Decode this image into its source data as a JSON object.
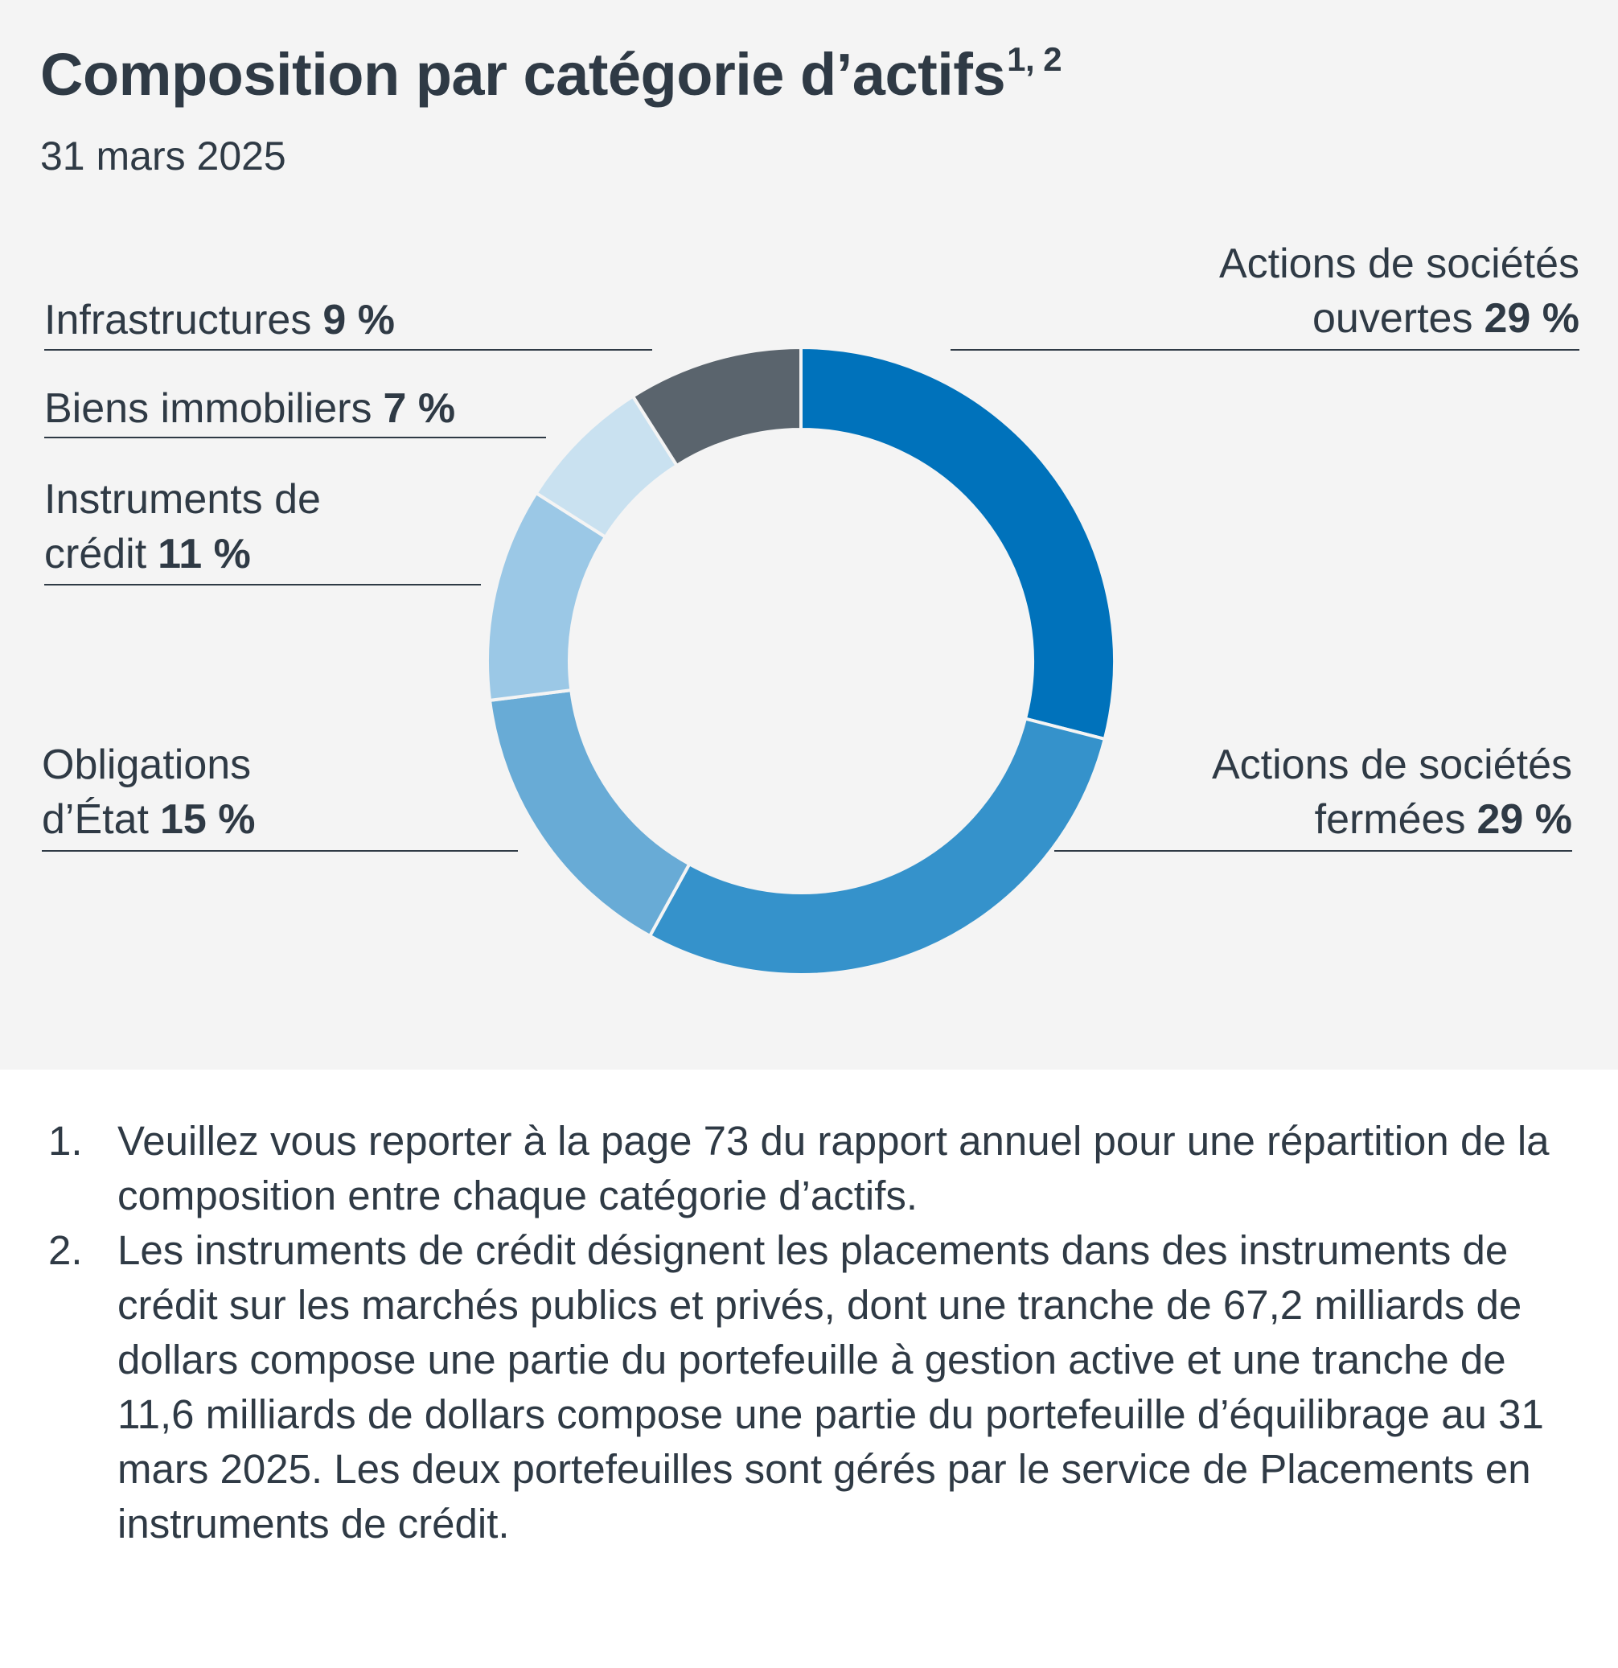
{
  "title": "Composition par catégorie d’actifs",
  "title_sup": "1, 2",
  "subtitle": "31 mars 2025",
  "labels": {
    "public_equity": {
      "line1": "Actions de sociétés",
      "line2": "ouvertes",
      "pct": "29 %"
    },
    "private_equity": {
      "line1": "Actions de sociétés",
      "line2": "fermées",
      "pct": "29 %"
    },
    "government_bonds": {
      "line1": "Obligations",
      "line2": "d’État",
      "pct": "15 %"
    },
    "credit": {
      "line1": "Instruments de",
      "line2": "crédit",
      "pct": "11 %"
    },
    "real_estate": {
      "line1": "Biens immobiliers",
      "pct": "7 %"
    },
    "infrastructure": {
      "line1": "Infrastructures",
      "pct": "9 %"
    }
  },
  "chart_data": {
    "type": "pie",
    "donut": true,
    "title": "Composition par catégorie d’actifs",
    "subtitle": "31 mars 2025",
    "slices": [
      {
        "label": "Actions de sociétés ouvertes",
        "value": 29,
        "color": "#0072bb"
      },
      {
        "label": "Actions de sociétés fermées",
        "value": 29,
        "color": "#3592cb"
      },
      {
        "label": "Obligations d’État",
        "value": 15,
        "color": "#68abd6"
      },
      {
        "label": "Instruments de crédit",
        "value": 11,
        "color": "#9bc8e6"
      },
      {
        "label": "Biens immobiliers",
        "value": 7,
        "color": "#c9e1f0"
      },
      {
        "label": "Infrastructures",
        "value": 9,
        "color": "#5a646d"
      }
    ]
  },
  "footnotes": [
    {
      "num": "1.",
      "text": "Veuillez vous reporter à la page 73 du rapport annuel pour une répartition de la composition entre chaque catégorie d’actifs."
    },
    {
      "num": "2.",
      "text": "Les instruments de crédit désignent les placements dans des instruments de crédit sur les marchés publics et privés, dont une tranche de 67,2 milliards de dollars compose une partie du portefeuille à gestion active et une tranche de 11,6 milliards de dollars compose une partie du portefeuille d’équilibrage au 31 mars 2025. Les deux portefeuilles sont gérés par le service de Placements en instruments de crédit."
    }
  ]
}
